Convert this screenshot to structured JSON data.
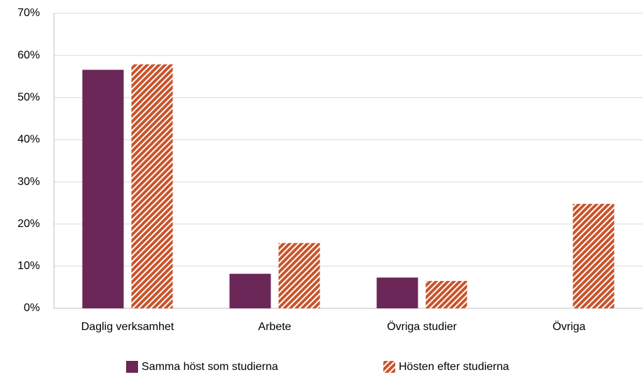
{
  "chart_data": {
    "type": "bar",
    "categories": [
      "Daglig verksamhet",
      "Arbete",
      "Övriga studier",
      "Övriga"
    ],
    "series": [
      {
        "name": "Samma höst som studierna",
        "color": "#6b2758",
        "values": [
          56.6,
          8.2,
          7.3,
          0
        ]
      },
      {
        "name": "Hösten efter studierna",
        "color": "#c9542b",
        "hatch": true,
        "values": [
          57.9,
          15.5,
          6.5,
          24.8
        ]
      }
    ],
    "ylim": [
      0,
      70
    ],
    "yticks": [
      {
        "value": 0,
        "label": "0%"
      },
      {
        "value": 10,
        "label": "10%"
      },
      {
        "value": 20,
        "label": "20%"
      },
      {
        "value": 30,
        "label": "30%"
      },
      {
        "value": 40,
        "label": "40%"
      },
      {
        "value": 50,
        "label": "50%"
      },
      {
        "value": 60,
        "label": "60%"
      },
      {
        "value": 70,
        "label": "70%"
      }
    ],
    "grid": true,
    "legend": "bottom"
  }
}
